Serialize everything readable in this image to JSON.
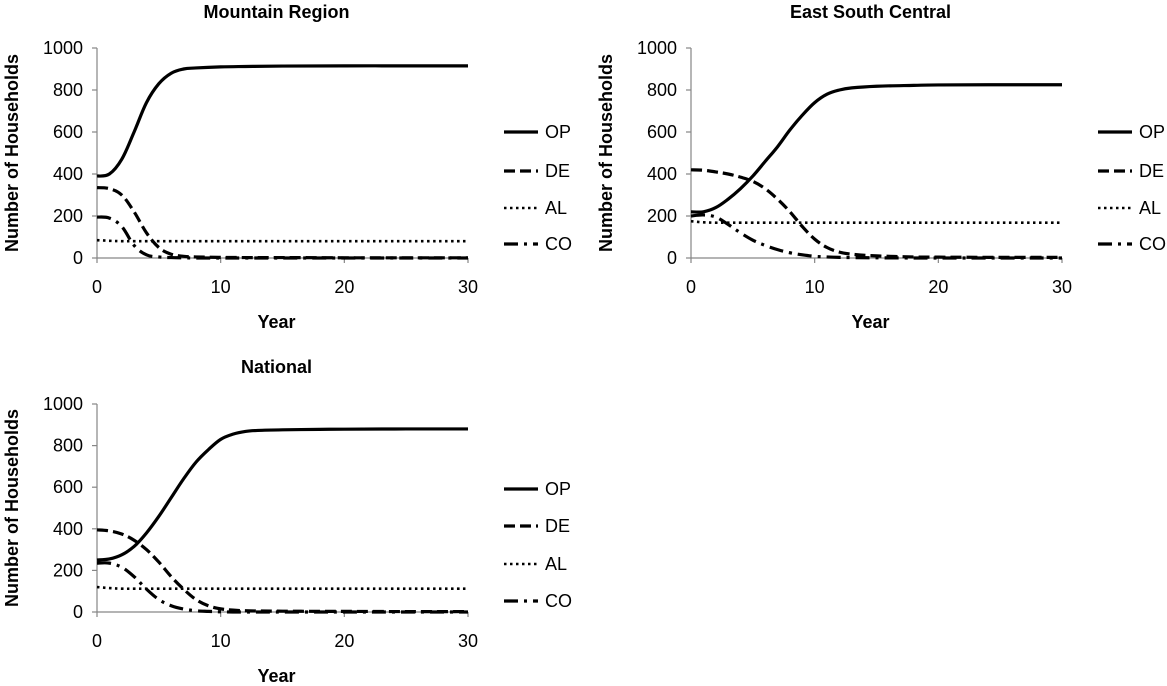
{
  "chart_data": [
    {
      "type": "line",
      "title": "Mountain Region",
      "xlabel": "Year",
      "ylabel": "Number of Households",
      "xlim": [
        0,
        30
      ],
      "ylim": [
        0,
        1000
      ],
      "xticks": [
        0,
        10,
        20,
        30
      ],
      "yticks": [
        0,
        200,
        400,
        600,
        800,
        1000
      ],
      "grid": false,
      "legend_position": "right",
      "x": [
        0,
        1,
        2,
        3,
        4,
        5,
        6,
        7,
        8,
        10,
        12,
        15,
        20,
        25,
        30
      ],
      "series": [
        {
          "name": "OP",
          "style": "solid",
          "values": [
            390,
            400,
            470,
            600,
            740,
            830,
            880,
            900,
            905,
            910,
            912,
            914,
            915,
            915,
            915
          ]
        },
        {
          "name": "DE",
          "style": "dashed",
          "values": [
            335,
            330,
            300,
            220,
            120,
            50,
            18,
            8,
            5,
            3,
            2,
            2,
            1,
            1,
            1
          ]
        },
        {
          "name": "AL",
          "style": "dotted",
          "values": [
            85,
            82,
            80,
            80,
            80,
            80,
            80,
            80,
            80,
            80,
            80,
            80,
            80,
            80,
            80
          ]
        },
        {
          "name": "CO",
          "style": "dashdot",
          "values": [
            195,
            190,
            150,
            60,
            15,
            5,
            2,
            1,
            0,
            0,
            0,
            0,
            0,
            0,
            0
          ]
        }
      ]
    },
    {
      "type": "line",
      "title": "East South Central",
      "xlabel": "Year",
      "ylabel": "Number of Households",
      "xlim": [
        0,
        30
      ],
      "ylim": [
        0,
        1000
      ],
      "xticks": [
        0,
        10,
        20,
        30
      ],
      "yticks": [
        0,
        200,
        400,
        600,
        800,
        1000
      ],
      "grid": false,
      "legend_position": "right",
      "x": [
        0,
        1,
        2,
        3,
        4,
        5,
        6,
        7,
        8,
        9,
        10,
        11,
        12,
        13,
        15,
        18,
        20,
        25,
        30
      ],
      "series": [
        {
          "name": "OP",
          "style": "solid",
          "values": [
            220,
            220,
            240,
            280,
            330,
            390,
            460,
            530,
            610,
            680,
            740,
            780,
            800,
            810,
            818,
            822,
            824,
            825,
            825
          ]
        },
        {
          "name": "DE",
          "style": "dashed",
          "values": [
            420,
            418,
            410,
            400,
            385,
            365,
            330,
            280,
            220,
            150,
            90,
            50,
            28,
            18,
            10,
            5,
            4,
            3,
            3
          ]
        },
        {
          "name": "AL",
          "style": "dotted",
          "values": [
            175,
            170,
            168,
            168,
            168,
            168,
            168,
            168,
            168,
            168,
            168,
            168,
            168,
            168,
            168,
            168,
            168,
            168,
            168
          ]
        },
        {
          "name": "CO",
          "style": "dashdot",
          "values": [
            200,
            205,
            195,
            160,
            120,
            85,
            60,
            40,
            25,
            15,
            8,
            5,
            3,
            2,
            1,
            0,
            0,
            0,
            0
          ]
        }
      ]
    },
    {
      "type": "line",
      "title": "National",
      "xlabel": "Year",
      "ylabel": "Number of Households",
      "xlim": [
        0,
        30
      ],
      "ylim": [
        0,
        1000
      ],
      "xticks": [
        0,
        10,
        20,
        30
      ],
      "yticks": [
        0,
        200,
        400,
        600,
        800,
        1000
      ],
      "grid": false,
      "legend_position": "right",
      "x": [
        0,
        1,
        2,
        3,
        4,
        5,
        6,
        7,
        8,
        9,
        10,
        11,
        12,
        13,
        15,
        18,
        20,
        25,
        30
      ],
      "series": [
        {
          "name": "OP",
          "style": "solid",
          "values": [
            250,
            255,
            275,
            315,
            380,
            460,
            550,
            640,
            720,
            780,
            830,
            855,
            868,
            873,
            876,
            878,
            879,
            880,
            880
          ]
        },
        {
          "name": "DE",
          "style": "dashed",
          "values": [
            395,
            390,
            375,
            345,
            300,
            240,
            170,
            110,
            60,
            30,
            15,
            9,
            6,
            5,
            4,
            3,
            3,
            2,
            2
          ]
        },
        {
          "name": "AL",
          "style": "dotted",
          "values": [
            120,
            115,
            112,
            112,
            112,
            112,
            112,
            112,
            112,
            112,
            112,
            112,
            112,
            112,
            112,
            112,
            112,
            112,
            112
          ]
        },
        {
          "name": "CO",
          "style": "dashdot",
          "values": [
            235,
            235,
            215,
            170,
            110,
            60,
            30,
            14,
            6,
            3,
            1,
            0,
            0,
            0,
            0,
            0,
            0,
            0,
            0
          ]
        }
      ]
    }
  ]
}
